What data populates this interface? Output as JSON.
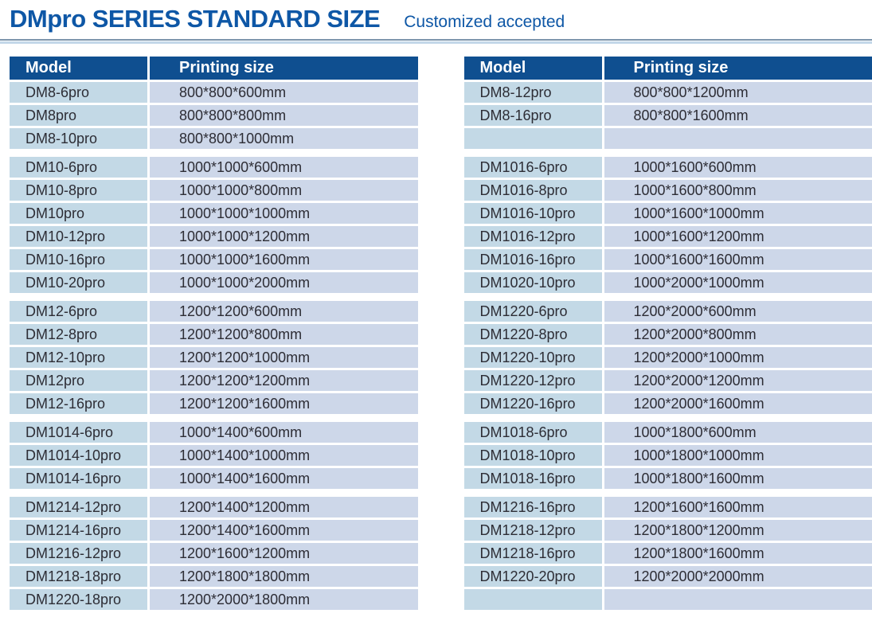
{
  "header": {
    "title": "DMpro SERIES STANDARD SIZE",
    "subtitle": "Customized accepted"
  },
  "columns": {
    "model": "Model",
    "printing_size": "Printing size"
  },
  "tables": [
    {
      "side": "left",
      "groups": [
        [
          {
            "model": "DM8-6pro",
            "printing_size": "800*800*600mm"
          },
          {
            "model": "DM8pro",
            "printing_size": "800*800*800mm"
          },
          {
            "model": "DM8-10pro",
            "printing_size": "800*800*1000mm"
          }
        ],
        [
          {
            "model": "DM10-6pro",
            "printing_size": "1000*1000*600mm"
          },
          {
            "model": "DM10-8pro",
            "printing_size": "1000*1000*800mm"
          },
          {
            "model": "DM10pro",
            "printing_size": "1000*1000*1000mm"
          },
          {
            "model": "DM10-12pro",
            "printing_size": "1000*1000*1200mm"
          },
          {
            "model": "DM10-16pro",
            "printing_size": "1000*1000*1600mm"
          },
          {
            "model": "DM10-20pro",
            "printing_size": "1000*1000*2000mm"
          }
        ],
        [
          {
            "model": "DM12-6pro",
            "printing_size": "1200*1200*600mm"
          },
          {
            "model": "DM12-8pro",
            "printing_size": "1200*1200*800mm"
          },
          {
            "model": "DM12-10pro",
            "printing_size": "1200*1200*1000mm"
          },
          {
            "model": "DM12pro",
            "printing_size": "1200*1200*1200mm"
          },
          {
            "model": "DM12-16pro",
            "printing_size": "1200*1200*1600mm"
          }
        ],
        [
          {
            "model": "DM1014-6pro",
            "printing_size": "1000*1400*600mm"
          },
          {
            "model": "DM1014-10pro",
            "printing_size": "1000*1400*1000mm"
          },
          {
            "model": "DM1014-16pro",
            "printing_size": "1000*1400*1600mm"
          }
        ],
        [
          {
            "model": "DM1214-12pro",
            "printing_size": "1200*1400*1200mm"
          },
          {
            "model": "DM1214-16pro",
            "printing_size": "1200*1400*1600mm"
          },
          {
            "model": "DM1216-12pro",
            "printing_size": "1200*1600*1200mm"
          },
          {
            "model": "DM1218-18pro",
            "printing_size": "1200*1800*1800mm"
          },
          {
            "model": "DM1220-18pro",
            "printing_size": "1200*2000*1800mm"
          }
        ]
      ]
    },
    {
      "side": "right",
      "groups": [
        [
          {
            "model": "DM8-12pro",
            "printing_size": "800*800*1200mm"
          },
          {
            "model": "DM8-16pro",
            "printing_size": "800*800*1600mm"
          },
          {
            "model": "",
            "printing_size": ""
          }
        ],
        [
          {
            "model": "DM1016-6pro",
            "printing_size": "1000*1600*600mm"
          },
          {
            "model": "DM1016-8pro",
            "printing_size": "1000*1600*800mm"
          },
          {
            "model": "DM1016-10pro",
            "printing_size": "1000*1600*1000mm"
          },
          {
            "model": "DM1016-12pro",
            "printing_size": "1000*1600*1200mm"
          },
          {
            "model": "DM1016-16pro",
            "printing_size": "1000*1600*1600mm"
          },
          {
            "model": "DM1020-10pro",
            "printing_size": "1000*2000*1000mm"
          }
        ],
        [
          {
            "model": "DM1220-6pro",
            "printing_size": "1200*2000*600mm"
          },
          {
            "model": "DM1220-8pro",
            "printing_size": "1200*2000*800mm"
          },
          {
            "model": "DM1220-10pro",
            "printing_size": "1200*2000*1000mm"
          },
          {
            "model": "DM1220-12pro",
            "printing_size": "1200*2000*1200mm"
          },
          {
            "model": "DM1220-16pro",
            "printing_size": "1200*2000*1600mm"
          }
        ],
        [
          {
            "model": "DM1018-6pro",
            "printing_size": "1000*1800*600mm"
          },
          {
            "model": "DM1018-10pro",
            "printing_size": "1000*1800*1000mm"
          },
          {
            "model": "DM1018-16pro",
            "printing_size": "1000*1800*1600mm"
          }
        ],
        [
          {
            "model": "DM1216-16pro",
            "printing_size": "1200*1600*1600mm"
          },
          {
            "model": "DM1218-12pro",
            "printing_size": "1200*1800*1200mm"
          },
          {
            "model": "DM1218-16pro",
            "printing_size": "1200*1800*1600mm"
          },
          {
            "model": "DM1220-20pro",
            "printing_size": "1200*2000*2000mm"
          },
          {
            "model": "",
            "printing_size": ""
          }
        ]
      ]
    }
  ],
  "colors": {
    "title_blue": "#0e57a6",
    "header_bg": "#0f4f90",
    "model_cell_bg": "#c3d9e6",
    "size_cell_bg": "#cdd7e9",
    "rule_dark": "#7e95ac",
    "rule_light": "#c3d7e9",
    "cell_text": "#2d2d35"
  }
}
